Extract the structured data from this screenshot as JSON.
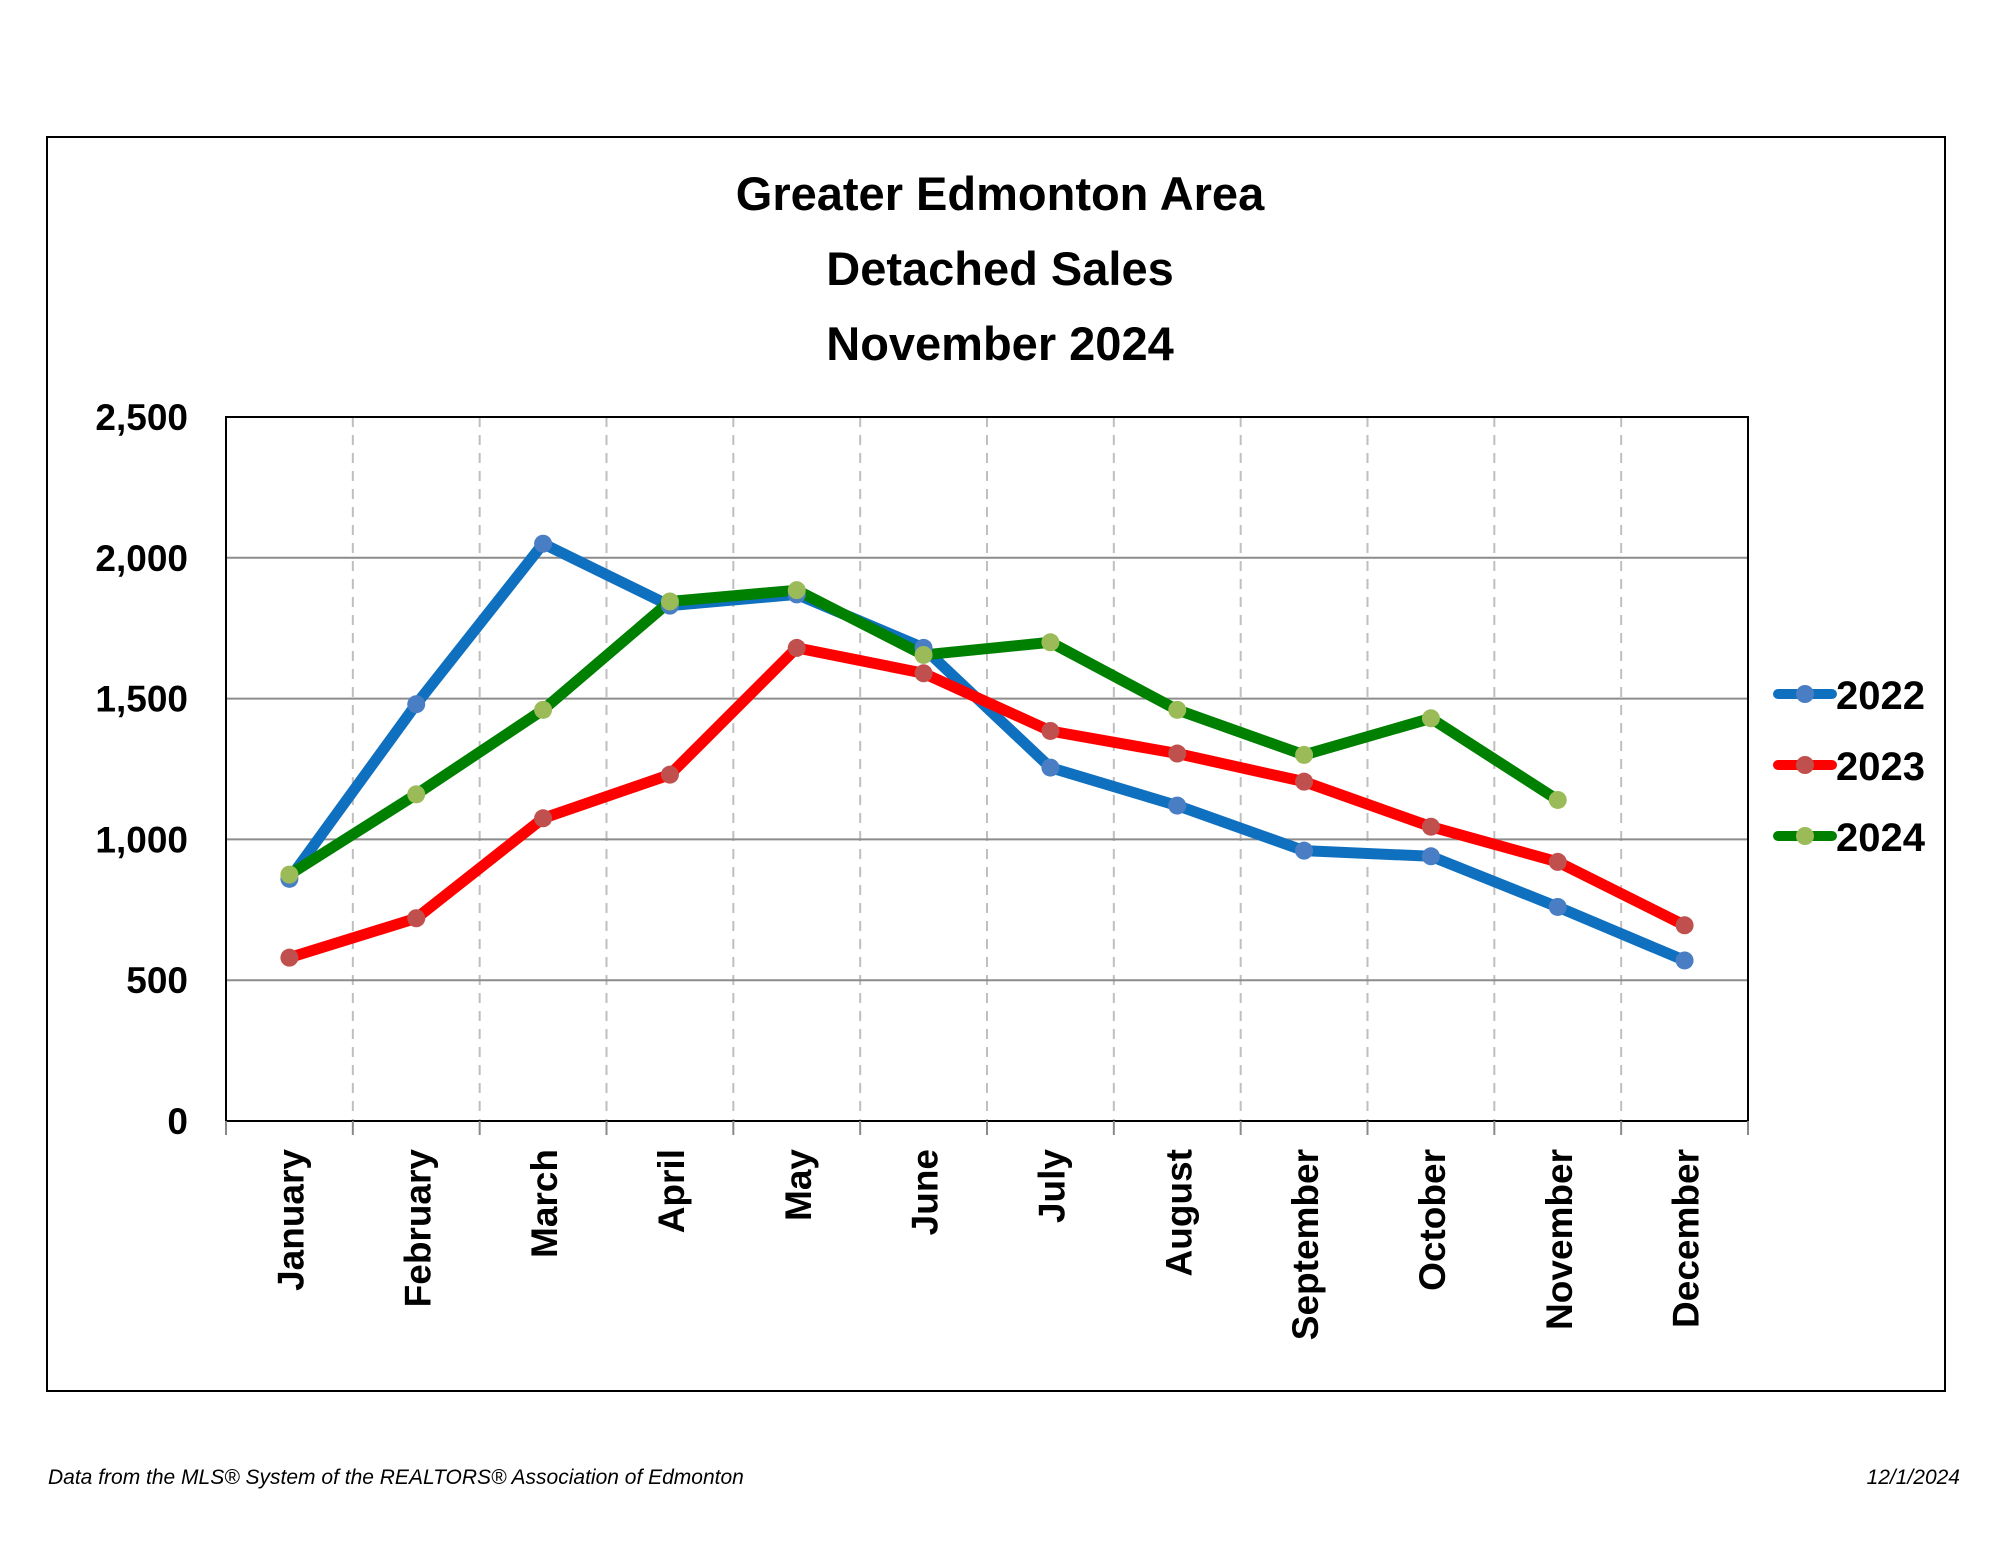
{
  "chart_data": {
    "type": "line",
    "title": [
      "Greater Edmonton Area",
      "Detached Sales",
      "November 2024"
    ],
    "categories": [
      "January",
      "February",
      "March",
      "April",
      "May",
      "June",
      "July",
      "August",
      "September",
      "October",
      "November",
      "December"
    ],
    "ylim": [
      0,
      2500
    ],
    "yticks": [
      0,
      500,
      1000,
      1500,
      2000,
      2500
    ],
    "ytick_labels": [
      "0",
      "500",
      "1,000",
      "1,500",
      "2,000",
      "2,500"
    ],
    "grid": "horizontal solid, vertical dashed",
    "legend_position": "right",
    "series": [
      {
        "name": "2022",
        "color": "#1070C0",
        "marker_color": "#4A7EC4",
        "values": [
          860,
          1480,
          2050,
          1830,
          1870,
          1680,
          1255,
          1120,
          960,
          940,
          760,
          570
        ]
      },
      {
        "name": "2023",
        "color": "#FF0000",
        "marker_color": "#C0504D",
        "values": [
          580,
          720,
          1075,
          1230,
          1680,
          1590,
          1385,
          1305,
          1205,
          1045,
          920,
          695
        ]
      },
      {
        "name": "2024",
        "color": "#008000",
        "marker_color": "#9BBB59",
        "values": [
          875,
          1160,
          1460,
          1845,
          1885,
          1655,
          1700,
          1460,
          1300,
          1430,
          1140,
          null
        ]
      }
    ]
  },
  "footer": {
    "source": "Data from the MLS® System of the REALTORS® Association of Edmonton",
    "date": "12/1/2024"
  }
}
